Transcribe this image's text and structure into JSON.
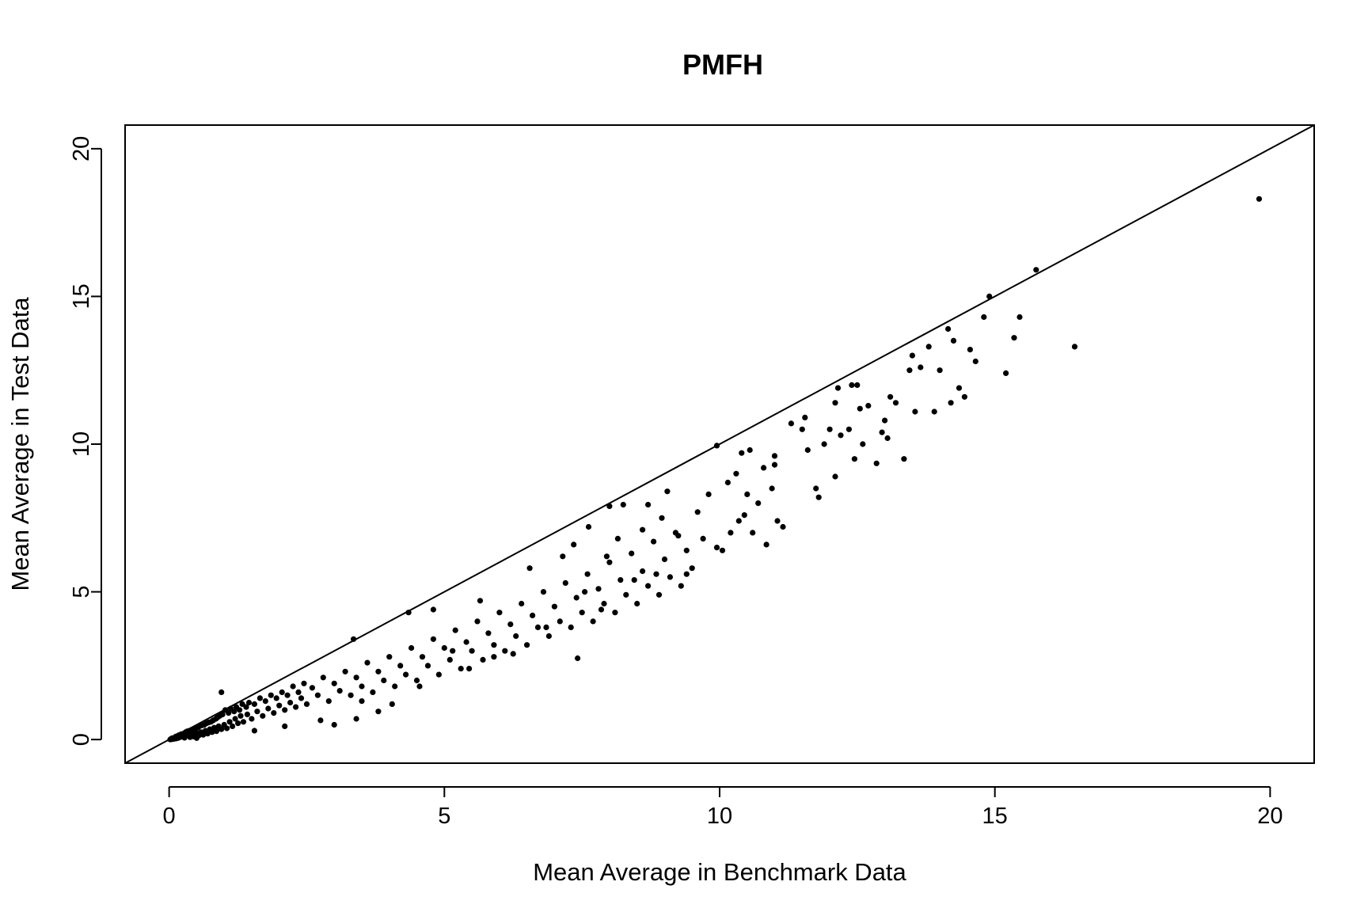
{
  "chart_data": {
    "type": "scatter",
    "title": "PMFH",
    "xlabel": "Mean Average in Benchmark Data",
    "ylabel": "Mean Average in Test Data",
    "xlim": [
      -0.8,
      20.8
    ],
    "ylim": [
      -0.8,
      20.8
    ],
    "x_ticks": [
      0,
      5,
      10,
      15,
      20
    ],
    "y_ticks": [
      0,
      5,
      10,
      15,
      20
    ],
    "x_tick_labels": [
      "0",
      "5",
      "10",
      "15",
      "20"
    ],
    "y_tick_labels": [
      "0",
      "5",
      "10",
      "15",
      "20"
    ],
    "reference_line": {
      "intercept": 0,
      "slope": 1
    },
    "grid": false,
    "box": true,
    "point_color": "#000000",
    "points": [
      [
        0.02,
        0.0
      ],
      [
        0.04,
        0.03
      ],
      [
        0.05,
        0.01
      ],
      [
        0.06,
        0.05
      ],
      [
        0.08,
        0.02
      ],
      [
        0.1,
        0.06
      ],
      [
        0.12,
        0.1
      ],
      [
        0.12,
        0.03
      ],
      [
        0.15,
        0.12
      ],
      [
        0.16,
        0.05
      ],
      [
        0.18,
        0.15
      ],
      [
        0.2,
        0.08
      ],
      [
        0.22,
        0.18
      ],
      [
        0.24,
        0.1
      ],
      [
        0.26,
        0.2
      ],
      [
        0.28,
        0.06
      ],
      [
        0.3,
        0.25
      ],
      [
        0.3,
        0.12
      ],
      [
        0.33,
        0.28
      ],
      [
        0.35,
        0.15
      ],
      [
        0.37,
        0.3
      ],
      [
        0.38,
        0.08
      ],
      [
        0.4,
        0.32
      ],
      [
        0.42,
        0.18
      ],
      [
        0.44,
        0.35
      ],
      [
        0.45,
        0.1
      ],
      [
        0.48,
        0.38
      ],
      [
        0.5,
        0.22
      ],
      [
        0.52,
        0.4
      ],
      [
        0.54,
        0.14
      ],
      [
        0.55,
        0.45
      ],
      [
        0.58,
        0.25
      ],
      [
        0.6,
        0.48
      ],
      [
        0.62,
        0.16
      ],
      [
        0.64,
        0.5
      ],
      [
        0.66,
        0.3
      ],
      [
        0.68,
        0.55
      ],
      [
        0.7,
        0.2
      ],
      [
        0.72,
        0.58
      ],
      [
        0.74,
        0.35
      ],
      [
        0.76,
        0.6
      ],
      [
        0.78,
        0.25
      ],
      [
        0.8,
        0.65
      ],
      [
        0.82,
        0.4
      ],
      [
        0.85,
        0.7
      ],
      [
        0.86,
        0.28
      ],
      [
        0.88,
        0.75
      ],
      [
        0.9,
        0.45
      ],
      [
        0.92,
        0.8
      ],
      [
        0.95,
        0.35
      ],
      [
        0.97,
        0.85
      ],
      [
        1.0,
        0.5
      ],
      [
        1.02,
        1.0
      ],
      [
        1.05,
        0.38
      ],
      [
        1.08,
        0.9
      ],
      [
        1.1,
        0.6
      ],
      [
        1.12,
        1.05
      ],
      [
        1.15,
        0.45
      ],
      [
        1.18,
        0.95
      ],
      [
        1.2,
        0.7
      ],
      [
        1.22,
        1.1
      ],
      [
        1.25,
        0.55
      ],
      [
        1.28,
        1.0
      ],
      [
        1.3,
        0.8
      ],
      [
        1.33,
        1.2
      ],
      [
        1.35,
        0.6
      ],
      [
        1.4,
        1.1
      ],
      [
        1.42,
        0.85
      ],
      [
        1.45,
        1.25
      ],
      [
        1.5,
        0.7
      ],
      [
        1.55,
        1.2
      ],
      [
        1.6,
        0.95
      ],
      [
        1.65,
        1.4
      ],
      [
        1.7,
        0.8
      ],
      [
        1.75,
        1.3
      ],
      [
        1.8,
        1.05
      ],
      [
        1.85,
        1.5
      ],
      [
        1.9,
        0.9
      ],
      [
        1.95,
        1.4
      ],
      [
        2.0,
        1.15
      ],
      [
        2.05,
        1.6
      ],
      [
        2.1,
        1.0
      ],
      [
        2.15,
        1.5
      ],
      [
        2.2,
        1.25
      ],
      [
        2.25,
        1.8
      ],
      [
        2.3,
        1.1
      ],
      [
        2.35,
        1.6
      ],
      [
        2.4,
        1.4
      ],
      [
        2.45,
        1.9
      ],
      [
        2.5,
        1.2
      ],
      [
        2.6,
        1.75
      ],
      [
        2.7,
        1.5
      ],
      [
        2.8,
        2.1
      ],
      [
        2.9,
        1.3
      ],
      [
        3.0,
        1.9
      ],
      [
        3.1,
        1.65
      ],
      [
        3.2,
        2.3
      ],
      [
        3.3,
        1.5
      ],
      [
        3.4,
        2.1
      ],
      [
        3.5,
        1.8
      ],
      [
        3.6,
        2.6
      ],
      [
        3.7,
        1.6
      ],
      [
        3.8,
        2.3
      ],
      [
        3.9,
        2.0
      ],
      [
        4.0,
        2.8
      ],
      [
        4.1,
        1.8
      ],
      [
        4.2,
        2.5
      ],
      [
        4.3,
        2.2
      ],
      [
        4.4,
        3.1
      ],
      [
        4.5,
        2.0
      ],
      [
        4.6,
        2.8
      ],
      [
        4.7,
        2.5
      ],
      [
        4.8,
        3.4
      ],
      [
        4.9,
        2.2
      ],
      [
        5.0,
        3.1
      ],
      [
        5.1,
        2.7
      ],
      [
        5.2,
        3.7
      ],
      [
        5.3,
        2.4
      ],
      [
        5.4,
        3.3
      ],
      [
        5.5,
        3.0
      ],
      [
        5.6,
        4.0
      ],
      [
        5.7,
        2.7
      ],
      [
        5.8,
        3.6
      ],
      [
        5.9,
        3.2
      ],
      [
        6.0,
        4.3
      ],
      [
        6.1,
        3.0
      ],
      [
        6.2,
        3.9
      ],
      [
        6.3,
        3.5
      ],
      [
        6.4,
        4.6
      ],
      [
        6.5,
        3.2
      ],
      [
        6.6,
        4.2
      ],
      [
        6.7,
        3.8
      ],
      [
        6.8,
        5.0
      ],
      [
        6.9,
        3.5
      ],
      [
        7.0,
        4.5
      ],
      [
        7.1,
        4.0
      ],
      [
        7.2,
        5.3
      ],
      [
        7.3,
        3.8
      ],
      [
        7.4,
        4.8
      ],
      [
        7.5,
        4.3
      ],
      [
        7.6,
        5.6
      ],
      [
        7.7,
        4.0
      ],
      [
        7.8,
        5.1
      ],
      [
        7.9,
        4.6
      ],
      [
        8.0,
        6.0
      ],
      [
        8.1,
        4.3
      ],
      [
        8.2,
        5.4
      ],
      [
        8.3,
        4.9
      ],
      [
        8.4,
        6.3
      ],
      [
        8.5,
        4.6
      ],
      [
        8.6,
        5.7
      ],
      [
        8.7,
        5.2
      ],
      [
        8.8,
        6.7
      ],
      [
        8.9,
        4.9
      ],
      [
        9.0,
        6.1
      ],
      [
        9.1,
        5.5
      ],
      [
        9.2,
        7.0
      ],
      [
        9.3,
        5.2
      ],
      [
        9.4,
        6.4
      ],
      [
        9.5,
        5.8
      ],
      [
        0.5,
        0.05
      ],
      [
        0.95,
        1.6
      ],
      [
        1.55,
        0.3
      ],
      [
        2.1,
        0.45
      ],
      [
        2.75,
        0.65
      ],
      [
        3.0,
        0.5
      ],
      [
        3.35,
        3.4
      ],
      [
        3.4,
        0.7
      ],
      [
        3.5,
        1.3
      ],
      [
        3.8,
        0.95
      ],
      [
        4.05,
        1.2
      ],
      [
        4.35,
        4.3
      ],
      [
        4.55,
        1.8
      ],
      [
        4.8,
        4.4
      ],
      [
        5.15,
        3.0
      ],
      [
        5.45,
        2.4
      ],
      [
        5.65,
        4.7
      ],
      [
        5.9,
        2.8
      ],
      [
        6.25,
        2.9
      ],
      [
        6.55,
        5.8
      ],
      [
        6.85,
        3.8
      ],
      [
        7.15,
        6.2
      ],
      [
        7.35,
        6.6
      ],
      [
        7.42,
        2.75
      ],
      [
        7.55,
        5.0
      ],
      [
        7.62,
        7.2
      ],
      [
        7.85,
        4.4
      ],
      [
        7.95,
        6.2
      ],
      [
        8.0,
        7.9
      ],
      [
        8.15,
        6.8
      ],
      [
        8.25,
        7.95
      ],
      [
        8.45,
        5.4
      ],
      [
        8.6,
        7.1
      ],
      [
        8.7,
        7.95
      ],
      [
        8.85,
        5.6
      ],
      [
        8.95,
        7.5
      ],
      [
        9.05,
        8.4
      ],
      [
        9.25,
        6.9
      ],
      [
        9.4,
        5.6
      ],
      [
        9.6,
        7.7
      ],
      [
        9.7,
        6.8
      ],
      [
        9.8,
        8.3
      ],
      [
        9.95,
        6.5
      ],
      [
        9.95,
        9.95
      ],
      [
        10.05,
        6.4
      ],
      [
        10.15,
        8.7
      ],
      [
        10.2,
        7.0
      ],
      [
        10.3,
        9.0
      ],
      [
        10.35,
        7.4
      ],
      [
        10.4,
        9.7
      ],
      [
        10.45,
        7.6
      ],
      [
        10.5,
        8.3
      ],
      [
        10.55,
        9.8
      ],
      [
        10.6,
        7.0
      ],
      [
        10.7,
        8.0
      ],
      [
        10.8,
        9.2
      ],
      [
        10.85,
        6.6
      ],
      [
        10.95,
        8.5
      ],
      [
        11.0,
        9.6
      ],
      [
        11.05,
        7.4
      ],
      [
        11.15,
        7.2
      ],
      [
        11.3,
        10.7
      ],
      [
        11.5,
        10.5
      ],
      [
        11.55,
        10.9
      ],
      [
        11.6,
        9.8
      ],
      [
        11.75,
        8.5
      ],
      [
        11.8,
        8.2
      ],
      [
        11.9,
        10.0
      ],
      [
        12.0,
        10.5
      ],
      [
        12.1,
        8.9
      ],
      [
        12.15,
        11.9
      ],
      [
        12.2,
        10.3
      ],
      [
        12.35,
        10.5
      ],
      [
        12.45,
        9.5
      ],
      [
        12.5,
        12.0
      ],
      [
        12.55,
        11.2
      ],
      [
        12.6,
        10.0
      ],
      [
        12.7,
        11.3
      ],
      [
        12.85,
        9.35
      ],
      [
        12.95,
        10.4
      ],
      [
        13.05,
        10.2
      ],
      [
        13.1,
        11.6
      ],
      [
        13.2,
        11.4
      ],
      [
        13.35,
        9.5
      ],
      [
        13.45,
        12.5
      ],
      [
        13.5,
        13.0
      ],
      [
        13.55,
        11.1
      ],
      [
        13.65,
        12.6
      ],
      [
        13.8,
        13.3
      ],
      [
        13.9,
        11.1
      ],
      [
        14.0,
        12.5
      ],
      [
        14.15,
        13.9
      ],
      [
        14.2,
        11.4
      ],
      [
        14.25,
        13.5
      ],
      [
        14.35,
        11.9
      ],
      [
        14.45,
        11.6
      ],
      [
        14.55,
        13.2
      ],
      [
        14.65,
        12.8
      ],
      [
        14.8,
        14.3
      ],
      [
        14.9,
        15.0
      ],
      [
        15.2,
        12.4
      ],
      [
        15.35,
        13.6
      ],
      [
        15.45,
        14.3
      ],
      [
        15.75,
        15.9
      ],
      [
        16.45,
        13.3
      ],
      [
        19.8,
        18.3
      ],
      [
        12.1,
        11.4
      ],
      [
        12.4,
        12.0
      ],
      [
        13.0,
        10.8
      ],
      [
        11.0,
        9.3
      ]
    ]
  }
}
